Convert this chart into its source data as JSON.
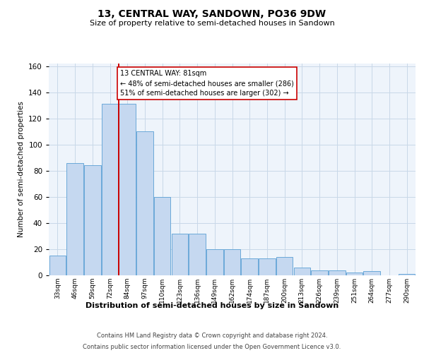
{
  "title": "13, CENTRAL WAY, SANDOWN, PO36 9DW",
  "subtitle": "Size of property relative to semi-detached houses in Sandown",
  "xlabel": "Distribution of semi-detached houses by size in Sandown",
  "ylabel": "Number of semi-detached properties",
  "categories": [
    "33sqm",
    "46sqm",
    "59sqm",
    "72sqm",
    "84sqm",
    "97sqm",
    "110sqm",
    "123sqm",
    "136sqm",
    "149sqm",
    "162sqm",
    "174sqm",
    "187sqm",
    "200sqm",
    "213sqm",
    "226sqm",
    "239sqm",
    "251sqm",
    "264sqm",
    "277sqm",
    "290sqm"
  ],
  "values": [
    15,
    86,
    84,
    131,
    131,
    110,
    60,
    32,
    32,
    20,
    20,
    13,
    13,
    14,
    6,
    4,
    4,
    2,
    3,
    0,
    1
  ],
  "bar_color": "#c5d8f0",
  "bar_edge_color": "#5a9fd4",
  "vline_x_index": 3.5,
  "annotation_title": "13 CENTRAL WAY: 81sqm",
  "annotation_smaller": "← 48% of semi-detached houses are smaller (286)",
  "annotation_larger": "51% of semi-detached houses are larger (302) →",
  "vline_color": "#cc0000",
  "annotation_box_color": "#ffffff",
  "annotation_box_edge_color": "#cc0000",
  "grid_color": "#c8d8e8",
  "background_color": "#eef4fb",
  "ylim_max": 162,
  "footer1": "Contains HM Land Registry data © Crown copyright and database right 2024.",
  "footer2": "Contains public sector information licensed under the Open Government Licence v3.0."
}
